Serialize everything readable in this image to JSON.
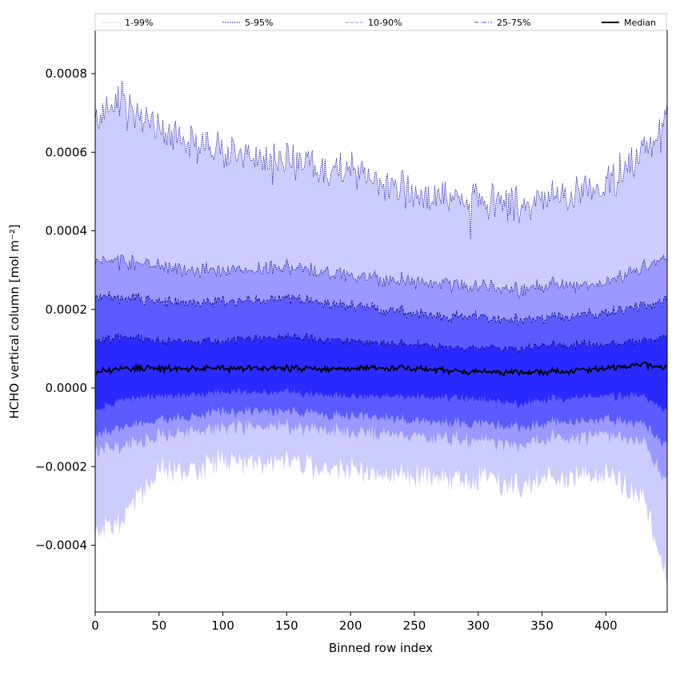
{
  "chart_data": {
    "type": "area",
    "xlabel": "Binned row index",
    "ylabel": "HCHO vertical column [mol m⁻²]",
    "xlim": [
      0,
      448
    ],
    "ylim": [
      -0.00057,
      0.00091
    ],
    "xticks": [
      0,
      50,
      100,
      150,
      200,
      250,
      300,
      350,
      400
    ],
    "yticks": [
      -0.0004,
      -0.0002,
      0.0,
      0.0002,
      0.0004,
      0.0006,
      0.0008
    ],
    "ytick_labels": [
      "−0.0004",
      "−0.0002",
      "0.0000",
      "0.0002",
      "0.0004",
      "0.0006",
      "0.0008"
    ],
    "grid": false,
    "legend_position": "top",
    "legend": [
      {
        "label": "1-99%",
        "style": "dotted",
        "color": "#c8c8c8"
      },
      {
        "label": "5-95%",
        "style": "dotted",
        "color": "#0000aa"
      },
      {
        "label": "10-90%",
        "style": "dashed",
        "color": "#8888ee"
      },
      {
        "label": "25-75%",
        "style": "dashdot",
        "color": "#4444cc"
      },
      {
        "label": "Median",
        "style": "solid",
        "color": "#000000"
      }
    ],
    "band_colors": {
      "1-99%": "#ccccff",
      "5-95%": "#9999ff",
      "10-90%": "#5b5bff",
      "25-75%": "#2a2aff"
    },
    "median_color": "#000000",
    "series_profile": {
      "x": [
        0,
        20,
        50,
        100,
        150,
        200,
        250,
        300,
        335,
        350,
        400,
        430,
        448
      ],
      "p99": [
        0.00068,
        0.00074,
        0.00066,
        0.0006,
        0.00058,
        0.00055,
        0.0005,
        0.00048,
        0.00046,
        0.00048,
        0.00052,
        0.0006,
        0.00068
      ],
      "p95": [
        0.00033,
        0.00032,
        0.00031,
        0.0003,
        0.00031,
        0.00029,
        0.00027,
        0.00026,
        0.00025,
        0.00026,
        0.00027,
        0.00031,
        0.00033
      ],
      "p90": [
        0.00023,
        0.00023,
        0.00022,
        0.00022,
        0.00023,
        0.00021,
        0.00019,
        0.00018,
        0.00017,
        0.00018,
        0.00019,
        0.00021,
        0.00022
      ],
      "p75": [
        0.00012,
        0.00013,
        0.00012,
        0.00012,
        0.00013,
        0.00012,
        0.00011,
        0.0001,
        0.0001,
        0.00011,
        0.00011,
        0.00012,
        0.00013
      ],
      "median": [
        4e-05,
        5e-05,
        5e-05,
        5e-05,
        5e-05,
        5e-05,
        5e-05,
        4e-05,
        4e-05,
        4e-05,
        5e-05,
        6e-05,
        5e-05
      ],
      "p25": [
        -6e-05,
        -3e-05,
        -2e-05,
        -1e-05,
        -1e-05,
        -2e-05,
        -2e-05,
        -3e-05,
        -4e-05,
        -3e-05,
        -2e-05,
        -2e-05,
        -6e-05
      ],
      "p10": [
        -0.00012,
        -0.0001,
        -8e-05,
        -6e-05,
        -6e-05,
        -7e-05,
        -8e-05,
        -9e-05,
        -0.0001,
        -9e-05,
        -8e-05,
        -9e-05,
        -0.00015
      ],
      "p5": [
        -0.00016,
        -0.00015,
        -0.00012,
        -0.0001,
        -0.0001,
        -0.00011,
        -0.00012,
        -0.00013,
        -0.00015,
        -0.00013,
        -0.00012,
        -0.00014,
        -0.00024
      ],
      "p1": [
        -0.00037,
        -0.00034,
        -0.00021,
        -0.00019,
        -0.00019,
        -0.00021,
        -0.00022,
        -0.00023,
        -0.00026,
        -0.00023,
        -0.00022,
        -0.00028,
        -0.0005
      ]
    }
  }
}
